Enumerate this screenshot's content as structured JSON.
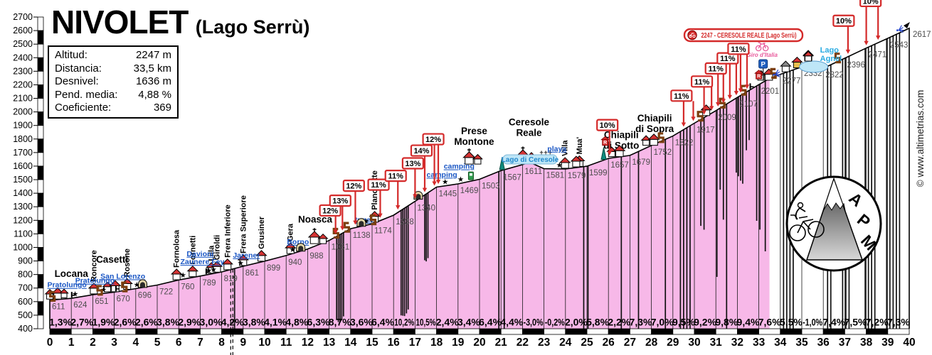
{
  "title": {
    "main": "NIVOLET",
    "sub": "(Lago Serrù)"
  },
  "info_box": {
    "rows": [
      {
        "label": "Altitud:",
        "value": "2247 m"
      },
      {
        "label": "Distancia:",
        "value": "33,5 km"
      },
      {
        "label": "Desnivel:",
        "value": "1636 m"
      },
      {
        "label": "Pend. media:",
        "value": "4,88 %"
      },
      {
        "label": "Coeficiente:",
        "value": "369"
      }
    ]
  },
  "watermark": "© www.altimetrias.com",
  "logo": {
    "letters": [
      "A",
      "P",
      "M"
    ]
  },
  "colors": {
    "profile_fill": "#F7B8E8",
    "flag_red": "#D42A2A",
    "blue_label": "#1A56C4",
    "cyan_label": "#29ABE2",
    "giro_pink": "#E8589A",
    "lake_fill": "#BEE6F7",
    "brown": "#7B3F10",
    "teal": "#0E8C7F",
    "green": "#2E9E4F",
    "parking_blue": "#1F5FBF",
    "alt_label": "#4d4d4d"
  },
  "chart_data": {
    "type": "area",
    "title": "NIVOLET (Lago Serrù)",
    "xlabel": "km",
    "ylabel": "m",
    "xlim": [
      0,
      40
    ],
    "ylim": [
      400,
      2700
    ],
    "y_tick_step": 100,
    "x_tick_step": 1,
    "paved_until_km": 33.5,
    "summit": {
      "km": 33.5,
      "alt": 2247
    },
    "x_km": [
      0,
      1,
      2,
      3,
      4,
      5,
      6,
      7,
      8,
      9,
      10,
      11,
      12,
      13,
      14,
      15,
      16,
      17,
      18,
      19,
      20,
      21,
      22,
      23,
      24,
      25,
      26,
      27,
      28,
      29,
      30,
      31,
      32,
      33,
      34,
      35,
      36,
      37,
      38,
      39,
      40
    ],
    "altitudes_m": [
      611,
      624,
      651,
      670,
      696,
      722,
      760,
      789,
      819,
      861,
      899,
      940,
      988,
      1051,
      1138,
      1174,
      1238,
      1340,
      1445,
      1469,
      1503,
      1567,
      1611,
      1581,
      1579,
      1599,
      1657,
      1679,
      1752,
      1822,
      1917,
      2009,
      2107,
      2201,
      2277,
      2332,
      2322,
      2396,
      2471,
      2543,
      2617
    ],
    "extra_points": [
      [
        22.25,
        1624
      ],
      [
        22.45,
        1620
      ],
      [
        33.5,
        2247
      ],
      [
        35.3,
        2318
      ],
      [
        35.55,
        2296
      ],
      [
        35.8,
        2305
      ]
    ],
    "km_gradients": [
      "1,3%",
      "2,7%",
      "1,9%",
      "2,6%",
      "2,6%",
      "3,8%",
      "2,9%",
      "3,0%",
      "4,2%",
      "3,8%",
      "4,1%",
      "4,8%",
      "6,3%",
      "8,7%",
      "3,6%",
      "6,4%",
      "10,2%",
      "10,5%",
      "2,4%",
      "3,4%",
      "6,4%",
      "4,4%",
      "-3,0%",
      "-0,2%",
      "2,0%",
      "5,8%",
      "2,2%",
      "7,3%",
      "7,0%",
      "9,5%",
      "9,2%",
      "9,8%",
      "9,4%",
      "7,6%",
      "5,5%",
      "-1,0%",
      "7,4%",
      "7,5%",
      "7,2%",
      "7,3%"
    ],
    "end_label": "2617",
    "summit_banner": {
      "text": "2247 - CERESOLE REALE (Lago Serrù)",
      "x": 962,
      "y": 41,
      "w": 166,
      "h": 17
    },
    "flags": [
      {
        "km": 13.05,
        "label": "12%",
        "arrows": [
          13.3
        ],
        "rise": 34
      },
      {
        "km": 13.52,
        "label": "13%",
        "arrows": [
          13.62
        ],
        "rise": 40
      },
      {
        "km": 14.15,
        "label": "12%",
        "arrows": [
          14.22
        ],
        "rise": 52
      },
      {
        "km": 15.3,
        "label": "11%",
        "arrows": [
          15.38
        ],
        "rise": 44
      },
      {
        "km": 16.1,
        "label": "11%",
        "arrows": [
          16.2
        ],
        "rise": 46
      },
      {
        "km": 16.9,
        "label": "13%",
        "arrows": [
          17.0
        ],
        "rise": 48
      },
      {
        "km": 17.3,
        "label": "14%",
        "arrows": [
          17.45
        ],
        "rise": 58
      },
      {
        "km": 17.85,
        "label": "12%",
        "arrows": [
          17.9,
          18.08
        ],
        "rise": 63
      },
      {
        "km": 25.95,
        "label": "10%",
        "arrows": [
          26.05
        ],
        "rise": 40
      },
      {
        "km": 29.4,
        "label": "11%",
        "arrows": [
          29.5,
          29.95
        ],
        "rise": 42
      },
      {
        "km": 30.35,
        "label": "11%",
        "arrows": [
          30.45,
          30.8
        ],
        "rise": 45
      },
      {
        "km": 31.0,
        "label": "11%",
        "arrows": [
          31.1,
          31.35
        ],
        "rise": 52
      },
      {
        "km": 31.55,
        "label": "11%",
        "arrows": [
          31.65,
          31.95
        ],
        "rise": 56
      },
      {
        "km": 32.05,
        "label": "11%",
        "arrows": [
          32.15,
          32.45
        ],
        "rise": 60
      },
      {
        "km": 36.95,
        "label": "10%",
        "arrows": [
          37.15
        ],
        "rise": 46
      },
      {
        "km": 38.2,
        "label": "10%",
        "arrows": [
          38.0,
          38.55
        ],
        "rise": 56
      }
    ],
    "town_labels_h": [
      {
        "km": 1.0,
        "lines": [
          "Locana"
        ],
        "lift": 30
      },
      {
        "km": 2.9,
        "lines": [
          "Casetti"
        ],
        "lift": 42
      },
      {
        "km": 12.35,
        "lines": [
          "Noasca"
        ],
        "lift": 33
      },
      {
        "km": 19.75,
        "lines": [
          "Prese",
          "Montone"
        ],
        "lift": 50
      },
      {
        "km": 22.3,
        "lines": [
          "Ceresole",
          "Reale"
        ],
        "lift": 38
      },
      {
        "km": 26.6,
        "lines": [
          "Chiapili",
          "di Sotto"
        ],
        "lift": 11
      },
      {
        "km": 28.15,
        "lines": [
          "Chiapili",
          "di Sopra"
        ],
        "lift": 17
      }
    ],
    "town_labels_v": [
      {
        "km": 2.05,
        "label": "Roncore"
      },
      {
        "km": 3.6,
        "label": "Rosone"
      },
      {
        "km": 5.9,
        "label": "Fornolosa"
      },
      {
        "km": 6.65,
        "label": "Fornetti"
      },
      {
        "km": 7.52,
        "label": "Lilla"
      },
      {
        "km": 7.78,
        "label": "Giroldi"
      },
      {
        "km": 8.27,
        "label": "Frera Inferiore"
      },
      {
        "km": 9.0,
        "label": "Frera Superiore"
      },
      {
        "km": 9.85,
        "label": "Grusiner"
      },
      {
        "km": 11.2,
        "label": "Gera"
      },
      {
        "km": 15.12,
        "label": "Planchette"
      },
      {
        "km": 23.98,
        "label": "Villa"
      },
      {
        "km": 24.65,
        "label": "Mua'"
      }
    ],
    "blue_labels": [
      {
        "km": 0.8,
        "label": "Pratolungo",
        "dy": 16
      },
      {
        "km": 2.1,
        "label": "Pratolungo",
        "dy": 16
      },
      {
        "km": 3.4,
        "label": "San Lorenzo",
        "dy": 17
      },
      {
        "km": 7.0,
        "label": "Davioni",
        "dy": 28
      },
      {
        "km": 7.1,
        "label": "Zaunere Fey",
        "dy": 16
      },
      {
        "km": 9.15,
        "label": "Jarener",
        "dy": 11
      },
      {
        "km": 11.55,
        "label": "Borno",
        "dy": 11
      },
      {
        "km": 14.62,
        "label": "tunel",
        "dy": 5
      },
      {
        "km": 18.25,
        "label": "camping",
        "dy": 13
      },
      {
        "km": 19.05,
        "label": "camping",
        "dy": 21
      },
      {
        "km": 23.6,
        "label": "playa",
        "dy": 25
      }
    ],
    "lake_ceresole": {
      "label": "Lago di Ceresole",
      "km": 22.35,
      "y": 227,
      "w": 76
    },
    "lago_agnel": {
      "lines": [
        "Lago",
        "Agnel"
      ],
      "km": 35.85,
      "y": 74,
      "lake_km": 35.55,
      "lake_y": 94,
      "house_km": 35.3,
      "house_y": 86
    },
    "giro": {
      "label": "Giro d'Italia",
      "km": 33.15,
      "y": 68
    },
    "parking": {
      "label": "P",
      "km": 33.2,
      "y": 90
    },
    "refuges": [
      {
        "label": "R",
        "km": 25.85,
        "lift": 20
      },
      {
        "label": "R",
        "km": 33.0,
        "lift": 8
      }
    ],
    "stars": [
      1.18,
      2.5,
      4.05,
      6.2,
      7.4,
      7.62,
      8.88,
      11.3,
      14.72,
      18.4,
      19.12,
      23.72
    ],
    "fountains": [
      1.02,
      3.08,
      7.28,
      32.6
    ],
    "arches": [
      4.32,
      11.68,
      14.5,
      17.15
    ],
    "brackets": [
      0.12,
      2.32,
      3.47,
      13.32,
      13.82,
      15.05,
      28.45,
      30.27,
      31.3,
      32.28,
      33.68,
      36.67
    ],
    "obelisks": [
      21.05,
      25.78
    ],
    "gas_stations": [
      19.6
    ],
    "springs": [
      {
        "km": 33.7,
        "lift": 3
      },
      {
        "km": 39.45,
        "lift": 5
      }
    ],
    "houses": [
      {
        "km": 0.2,
        "n": 3
      },
      {
        "km": 2.88,
        "n": 2
      },
      {
        "km": 24.5,
        "n": 1
      },
      {
        "km": 26.35,
        "n": 2
      },
      {
        "km": 27.95,
        "n": 2
      },
      {
        "km": 30.55,
        "n": 1
      },
      {
        "km": 33.3,
        "n": 2
      }
    ],
    "misc_houses": [
      {
        "km": 34.25,
        "roof": "#8a8a8a"
      },
      {
        "km": 34.78,
        "wall": "#E8C050"
      },
      {
        "km": 35.3,
        "y": 86
      }
    ],
    "churches": [
      {
        "km": 12.55,
        "crosses": 0,
        "lift": 0
      },
      {
        "km": 19.75,
        "crosses": 0,
        "lift": 22
      },
      {
        "km": 22.25,
        "crosses": 3,
        "lift": 0
      }
    ],
    "hairpin_lines": [
      [
        8.6,
        0
      ],
      [
        13.35,
        118
      ],
      [
        13.43,
        122
      ],
      [
        13.51,
        124
      ],
      [
        13.59,
        122
      ],
      [
        13.67,
        118
      ],
      [
        16.35,
        148
      ],
      [
        16.43,
        150
      ],
      [
        16.51,
        152
      ],
      [
        16.6,
        150
      ],
      [
        16.68,
        146
      ],
      [
        17.45,
        92
      ],
      [
        17.52,
        95
      ],
      [
        17.6,
        92
      ],
      [
        20.9,
        0
      ],
      [
        21.15,
        0
      ],
      [
        24.85,
        0
      ],
      [
        25.05,
        0
      ],
      [
        26.6,
        0
      ],
      [
        27.4,
        0
      ],
      [
        28.65,
        0
      ],
      [
        29.35,
        0
      ],
      [
        29.5,
        0
      ],
      [
        29.65,
        0
      ],
      [
        29.8,
        0
      ],
      [
        30.3,
        150
      ],
      [
        30.45,
        158
      ],
      [
        31.05,
        235
      ],
      [
        31.2,
        115
      ],
      [
        31.35,
        160
      ],
      [
        31.5,
        0
      ],
      [
        31.95,
        105
      ],
      [
        32.05,
        112
      ],
      [
        32.15,
        120
      ],
      [
        32.25,
        126
      ],
      [
        32.42,
        82
      ],
      [
        32.55,
        70
      ],
      [
        32.9,
        190
      ],
      [
        33.05,
        205
      ],
      [
        33.3,
        240
      ],
      [
        34.15,
        0
      ],
      [
        34.3,
        0
      ],
      [
        34.45,
        0
      ],
      [
        34.6,
        0
      ],
      [
        36.2,
        0
      ],
      [
        36.35,
        0
      ],
      [
        36.9,
        0
      ],
      [
        37.05,
        0
      ],
      [
        37.2,
        0
      ],
      [
        37.95,
        0
      ],
      [
        38.1,
        0
      ],
      [
        38.25,
        0
      ],
      [
        38.4,
        0
      ],
      [
        38.95,
        0
      ],
      [
        39.1,
        0
      ],
      [
        39.25,
        0
      ],
      [
        39.4,
        0
      ],
      [
        39.55,
        0
      ]
    ],
    "dashed_lines": [
      8.42,
      8.52
    ]
  }
}
